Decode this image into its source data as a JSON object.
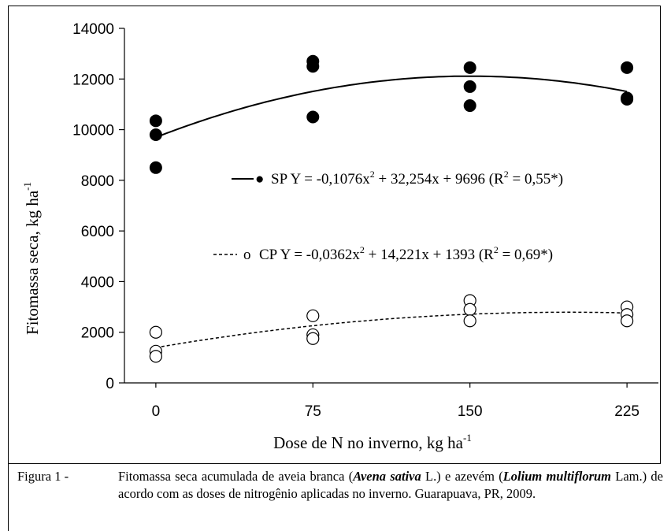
{
  "chart_data": {
    "type": "scatter",
    "xlabel": "Dose de N no inverno, kg ha",
    "xlabel_sup": "-1",
    "ylabel": "Fitomassa seca, kg ha",
    "ylabel_sup": "-1",
    "xlim": [
      -15,
      240
    ],
    "ylim": [
      0,
      14000
    ],
    "x_ticks": [
      "0",
      "75",
      "150",
      "225"
    ],
    "x_tick_values": [
      0,
      75,
      150,
      225
    ],
    "y_ticks": [
      "0",
      "2000",
      "4000",
      "6000",
      "8000",
      "10000",
      "12000",
      "14000"
    ],
    "y_tick_values": [
      0,
      2000,
      4000,
      6000,
      8000,
      10000,
      12000,
      14000
    ],
    "grid": false,
    "series": [
      {
        "name": "SP",
        "marker": "filled-circle",
        "line": "solid",
        "points": [
          [
            0,
            10350
          ],
          [
            0,
            9800
          ],
          [
            0,
            8500
          ],
          [
            75,
            12700
          ],
          [
            75,
            12500
          ],
          [
            75,
            10500
          ],
          [
            150,
            12450
          ],
          [
            150,
            11700
          ],
          [
            150,
            10950
          ],
          [
            225,
            12450
          ],
          [
            225,
            11250
          ],
          [
            225,
            11200
          ]
        ],
        "fit_coefficients": [
          -0.1076,
          32.254,
          9696
        ],
        "legend": {
          "symbol": "●",
          "label": "SP Y = -0,1076x",
          "part2": " + 32,254x + 9696 (R",
          "part3": " = 0,55*)",
          "sup": "2"
        }
      },
      {
        "name": "CP",
        "marker": "open-circle",
        "line": "dashed",
        "points": [
          [
            0,
            2000
          ],
          [
            0,
            1250
          ],
          [
            0,
            1050
          ],
          [
            75,
            2650
          ],
          [
            75,
            1900
          ],
          [
            75,
            1750
          ],
          [
            150,
            3250
          ],
          [
            150,
            2900
          ],
          [
            150,
            2450
          ],
          [
            225,
            3000
          ],
          [
            225,
            2700
          ],
          [
            225,
            2450
          ]
        ],
        "fit_coefficients": [
          -0.0362,
          14.221,
          1393
        ],
        "legend": {
          "symbol": "o",
          "label": "CP Y = -0,0362x",
          "part2": " + 14,221x + 1393 (R",
          "part3": " = 0,69*)",
          "sup": "2"
        }
      }
    ]
  },
  "caption": {
    "prefix": "Figura 1 - ",
    "text1": "Fitomassa seca acumulada de aveia branca (",
    "species1": "Avena sativa",
    "text2": " L.) e azevém (",
    "species2": "Lolium multiflorum",
    "text3": " Lam.) de acordo com as doses de nitrogênio aplicadas no inverno. Guarapuava, PR, 2009."
  }
}
